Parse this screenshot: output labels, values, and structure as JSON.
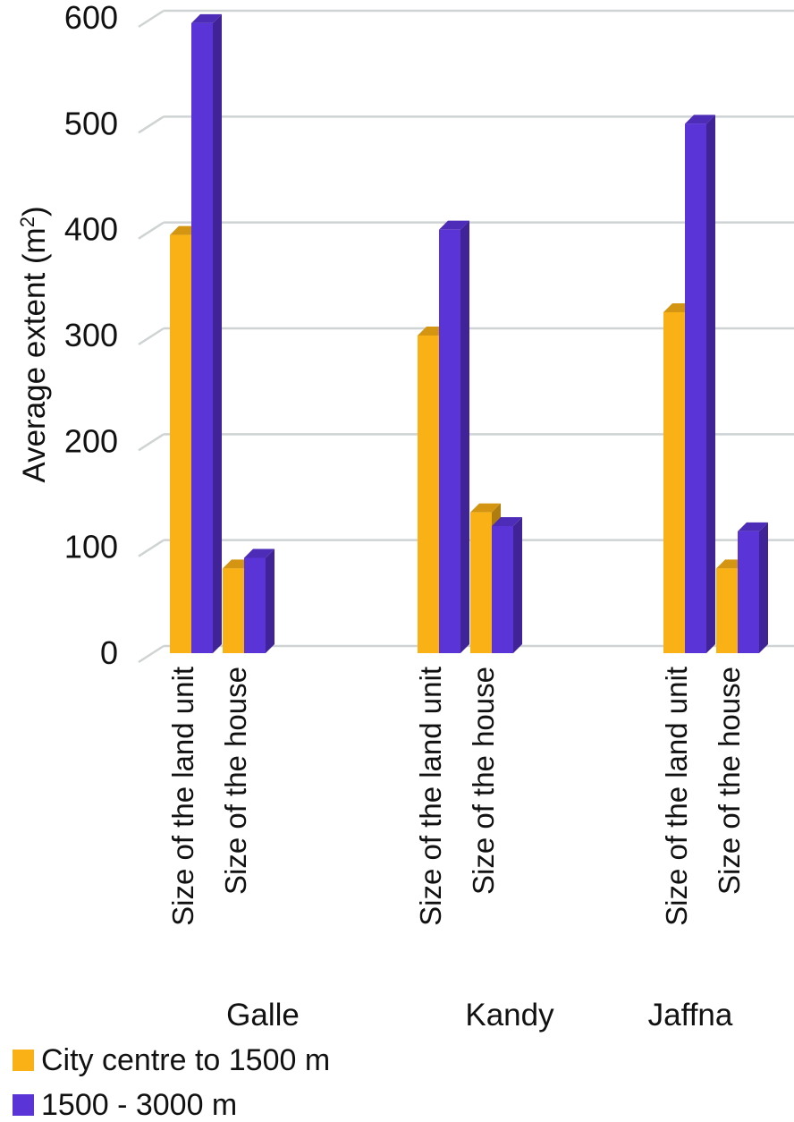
{
  "chart_data": {
    "type": "bar",
    "ylabel": "Average extent (m",
    "ylabel_sup": "2",
    "ylabel_close": ")",
    "ylim": [
      0,
      600
    ],
    "yticks": [
      "0",
      "100",
      "200",
      "300",
      "400",
      "500",
      "600"
    ],
    "groups": [
      {
        "name": "Galle",
        "categories": [
          "Size of the land unit",
          "Size of the house"
        ]
      },
      {
        "name": "Kandy",
        "categories": [
          "Size of the land unit",
          "Size of the house"
        ]
      },
      {
        "name": "Jaffna",
        "categories": [
          "Size of the land unit",
          "Size of the house"
        ]
      }
    ],
    "series": [
      {
        "name": "City centre to 1500 m",
        "color": "#f9b115",
        "values": [
          395,
          80,
          300,
          133,
          322,
          80
        ]
      },
      {
        "name": "1500 - 3000 m",
        "color": "#5b34d8",
        "values": [
          595,
          90,
          400,
          120,
          500,
          115
        ]
      }
    ],
    "grid": true,
    "legend_position": "bottom-left"
  }
}
